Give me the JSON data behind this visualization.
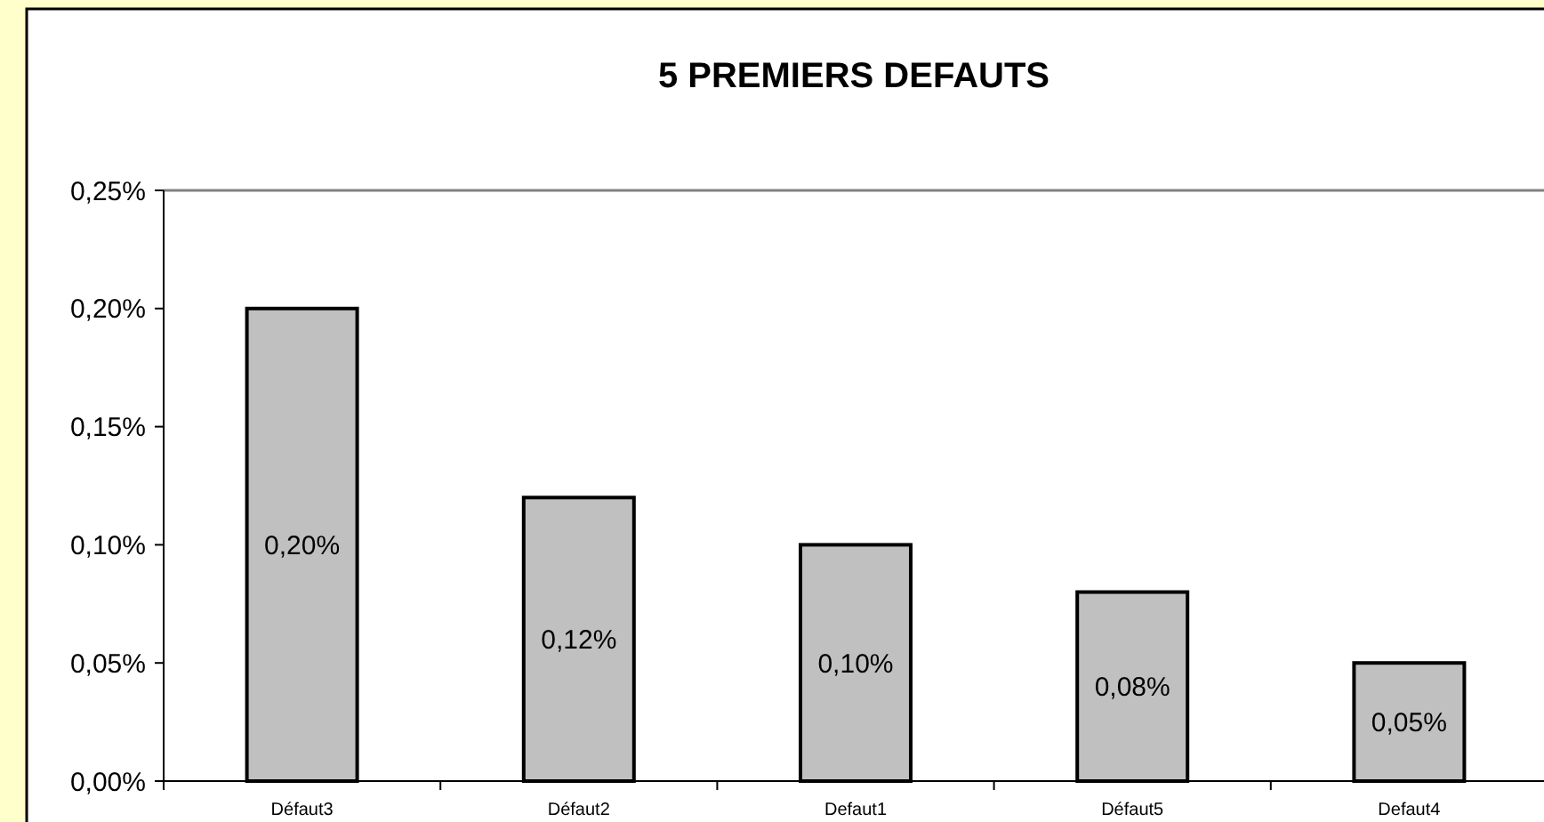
{
  "chart_data": {
    "type": "bar",
    "title": "5 PREMIERS DEFAUTS",
    "categories": [
      "Défaut3",
      "Défaut2",
      "Defaut1",
      "Défaut5",
      "Defaut4"
    ],
    "values": [
      0.2,
      0.12,
      0.1,
      0.08,
      0.05
    ],
    "value_labels": [
      "0,20%",
      "0,12%",
      "0,10%",
      "0,08%",
      "0,05%"
    ],
    "color": "#c0c0c0",
    "ylim": [
      0,
      0.25
    ],
    "yticks": [
      {
        "value": 0,
        "label": "0,00%"
      },
      {
        "value": 0.05,
        "label": "0,05%"
      },
      {
        "value": 0.1,
        "label": "0,10%"
      },
      {
        "value": 0.15,
        "label": "0,15%"
      },
      {
        "value": 0.2,
        "label": "0,20%"
      },
      {
        "value": 0.25,
        "label": "0,25%"
      }
    ],
    "grid": false
  }
}
